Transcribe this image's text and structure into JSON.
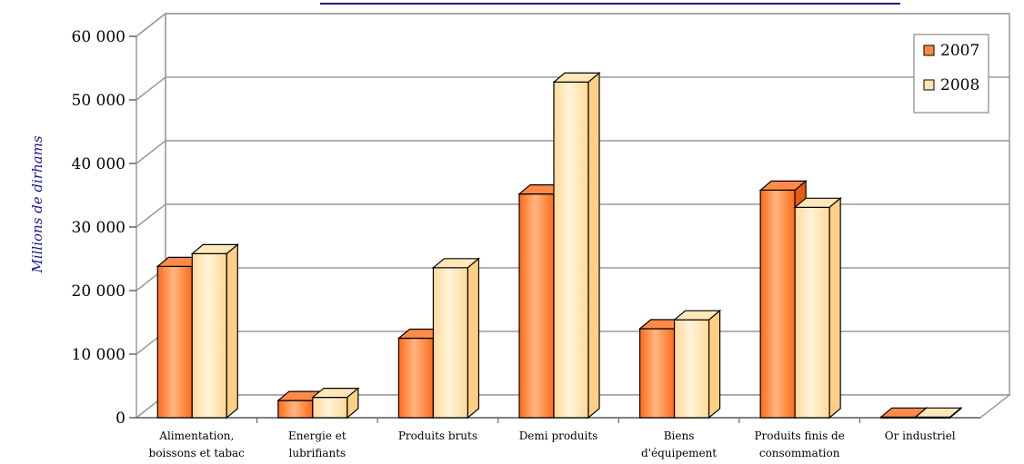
{
  "chart_data": {
    "type": "bar",
    "title": "",
    "xlabel": "",
    "ylabel": "Millions de dirhams",
    "ylim": [
      0,
      60000
    ],
    "yticks": [
      0,
      10000,
      20000,
      30000,
      40000,
      50000,
      60000
    ],
    "ytick_labels": [
      "0",
      "10 000",
      "20 000",
      "30 000",
      "40 000",
      "50 000",
      "60 000"
    ],
    "categories": [
      [
        "Alimentation,",
        "boissons et tabac"
      ],
      [
        "Energie  et",
        "lubrifiants"
      ],
      [
        "Produits bruts"
      ],
      [
        "Demi produits"
      ],
      [
        "Biens",
        "d'équipement"
      ],
      [
        "Produits finis de",
        "consommation"
      ],
      [
        "Or industriel"
      ]
    ],
    "series": [
      {
        "name": "2007",
        "values": [
          23800,
          2700,
          12500,
          35200,
          14000,
          35800,
          100
        ]
      },
      {
        "name": "2008",
        "values": [
          25800,
          3200,
          23600,
          52800,
          15400,
          33100,
          100
        ]
      }
    ],
    "grid": true,
    "legend_position": "top-right",
    "colors": {
      "s2007_light": "#ffcc99",
      "s2007_dark": "#ff6a1a",
      "s2007_top": "#ff8a4a",
      "s2008_light": "#fff2cc",
      "s2008_dark": "#ffd28a",
      "s2008_top": "#ffe8b0",
      "title_bar": "#1a1a8c",
      "ylabel": "#1a1a8c",
      "grid": "#9a9a9a"
    }
  }
}
